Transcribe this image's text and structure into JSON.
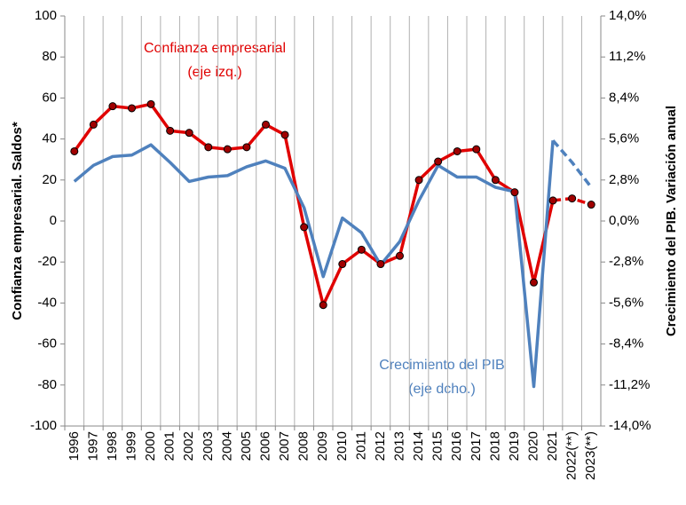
{
  "chart_data": {
    "type": "line",
    "categories": [
      "1996",
      "1997",
      "1998",
      "1999",
      "2000",
      "2001",
      "2002",
      "2003",
      "2004",
      "2005",
      "2006",
      "2007",
      "2008",
      "2009",
      "2010",
      "2011",
      "2012",
      "2013",
      "2014",
      "2015",
      "2016",
      "2017",
      "2018",
      "2019",
      "2020",
      "2021",
      "2022(**)",
      "2023(**)"
    ],
    "y_label": "Confianza empresarial. Saldos*",
    "y2_label": "Crecimiento del PIB. Variación anual",
    "ylim": [
      -100,
      100
    ],
    "yticks": [
      -100,
      -80,
      -60,
      -40,
      -20,
      0,
      20,
      40,
      60,
      80,
      100
    ],
    "y2lim": [
      -14,
      14
    ],
    "y2ticks": [
      {
        "value": -14,
        "label": "-14,0%"
      },
      {
        "value": -11.2,
        "label": "-11,2%"
      },
      {
        "value": -8.4,
        "label": "-8,4%"
      },
      {
        "value": -5.6,
        "label": "-5,6%"
      },
      {
        "value": -2.8,
        "label": "-2,8%"
      },
      {
        "value": 0,
        "label": "0,0%"
      },
      {
        "value": 2.8,
        "label": "2,8%"
      },
      {
        "value": 5.6,
        "label": "5,6%"
      },
      {
        "value": 8.4,
        "label": "8,4%"
      },
      {
        "value": 11.2,
        "label": "11,2%"
      },
      {
        "value": 14,
        "label": "14,0%"
      }
    ],
    "vertical_grid": true,
    "dashed_from": "2021",
    "series": [
      {
        "name": "Confianza empresarial",
        "axis_note": "(eje izq.)",
        "color": "#e00000",
        "markers": true,
        "axis": "y",
        "values": [
          34,
          47,
          56,
          55,
          57,
          44,
          43,
          36,
          35,
          36,
          47,
          42,
          -3,
          -41,
          -21,
          -14,
          -21,
          -17,
          20,
          29,
          34,
          35,
          20,
          14,
          -30,
          10,
          11,
          8
        ]
      },
      {
        "name": "Crecimiento del PIB",
        "axis_note": "(eje dcho.)",
        "color": "#4f81bd",
        "markers": false,
        "axis": "y2",
        "values": [
          2.7,
          3.8,
          4.4,
          4.5,
          5.2,
          4.0,
          2.7,
          3.0,
          3.1,
          3.7,
          4.1,
          3.6,
          0.9,
          -3.8,
          0.2,
          -0.8,
          -3.0,
          -1.4,
          1.4,
          3.8,
          3.0,
          3.0,
          2.3,
          2.0,
          -11.3,
          5.5,
          4.0,
          2.3
        ]
      }
    ]
  }
}
